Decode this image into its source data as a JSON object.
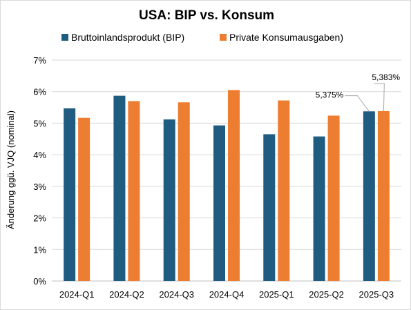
{
  "chart_data": {
    "type": "bar",
    "title": "USA: BIP vs. Konsum",
    "ylabel": "Änderung ggü. VJQ (nominal)",
    "xlabel": "",
    "categories": [
      "2024-Q1",
      "2024-Q2",
      "2024-Q3",
      "2024-Q4",
      "2025-Q1",
      "2025-Q2",
      "2025-Q3"
    ],
    "series": [
      {
        "name": "Bruttoinlandsprodukt (BIP)",
        "color": "#1f5c80",
        "values": [
          5.47,
          5.87,
          5.12,
          4.93,
          4.65,
          4.58,
          5.375
        ]
      },
      {
        "name": "Private Konsumausgaben)",
        "color": "#ed7d31",
        "values": [
          5.17,
          5.7,
          5.66,
          6.05,
          5.72,
          5.24,
          5.383
        ]
      }
    ],
    "ylim": [
      0,
      7
    ],
    "yticks": [
      "0%",
      "1%",
      "2%",
      "3%",
      "4%",
      "5%",
      "6%",
      "7%"
    ],
    "grid": true,
    "legend": "top",
    "annotations": [
      {
        "series": 0,
        "index": 6,
        "text": "5,375%"
      },
      {
        "series": 1,
        "index": 6,
        "text": "5,383%"
      }
    ]
  }
}
